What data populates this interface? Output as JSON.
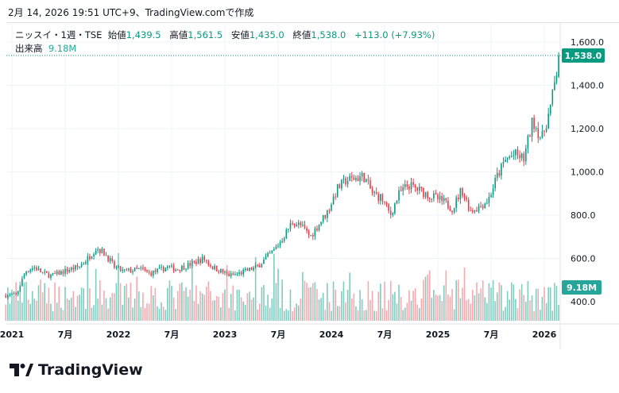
{
  "caption": "2月 14, 2026 19:51 UTC+9、TradingView.comで作成",
  "legend": {
    "symbol": "ニッスイ・1週・TSE",
    "open_label": "始値",
    "open": "1,439.5",
    "high_label": "高値",
    "high": "1,561.5",
    "low_label": "安値",
    "low": "1,435.0",
    "close_label": "終値",
    "close": "1,538.0",
    "change": "+113.0 (+7.93%)",
    "volume_label": "出来高",
    "volume": "9.18M"
  },
  "logo_text": "TradingView",
  "colors": {
    "up": "#089981",
    "down": "#f23645",
    "up_vol": "#7fcdc0",
    "down_vol": "#f7a9ae"
  },
  "chart_data": {
    "type": "candlestick",
    "interval": "1W",
    "ylim": [
      400,
      1600
    ],
    "y_ticks": [
      "1,600.0",
      "1,400.0",
      "1,200.0",
      "1,000.0",
      "800.0",
      "600.0",
      "400.0"
    ],
    "y_tick_values": [
      1600,
      1400,
      1200,
      1000,
      800,
      600,
      400
    ],
    "x_ticks": [
      "2021",
      "7月",
      "2022",
      "7月",
      "2023",
      "7月",
      "2024",
      "7月",
      "2025",
      "7月",
      "2026"
    ],
    "x_tick_months": [
      0,
      6,
      12,
      18,
      24,
      30,
      36,
      42,
      48,
      54,
      60
    ],
    "monthly_close_from_2021_01": [
      430,
      540,
      560,
      530,
      520,
      535,
      550,
      560,
      600,
      650,
      620,
      560,
      540,
      545,
      550,
      530,
      545,
      560,
      550,
      565,
      580,
      600,
      560,
      540,
      520,
      530,
      545,
      560,
      600,
      640,
      700,
      770,
      750,
      700,
      760,
      820,
      920,
      960,
      970,
      980,
      900,
      880,
      800,
      900,
      940,
      920,
      900,
      880,
      860,
      830,
      920,
      820,
      840,
      870,
      980,
      1060,
      1080,
      1060,
      1240,
      1150,
      1300,
      1538
    ],
    "last_price": 1538.0,
    "last_price_label": "1,538.0",
    "last_volume_label": "9.18M"
  }
}
